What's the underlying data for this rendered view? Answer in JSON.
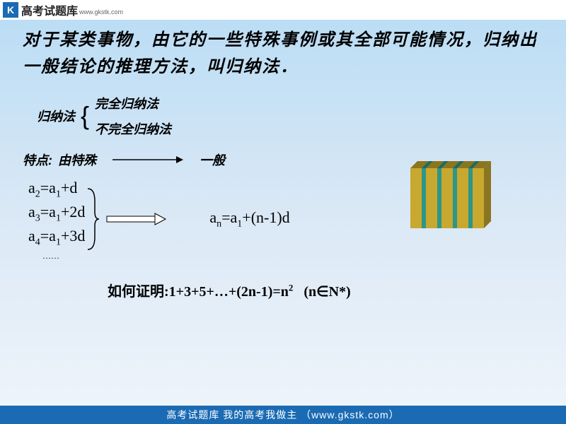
{
  "header": {
    "logo_letter": "K",
    "title": "高考试题库",
    "subtitle": "www.gkstk.com"
  },
  "main": {
    "definition": "对于某类事物，由它的一些特殊事例或其全部可能情况，归纳出一般结论的推理方法，叫归纳法．",
    "method_label": "归纳法",
    "option1": "完全归纳法",
    "option2": "不完全归纳法",
    "feature_label": "特点:",
    "feature_from": "由特殊",
    "feature_to": "一般",
    "formula1": "a₂=a₁+d",
    "formula2": "a₃=a₁+2d",
    "formula3": "a₄=a₁+3d",
    "dots": "……",
    "result": "aₙ=a₁+(n-1)d",
    "question_prefix": "如何证明:",
    "question_formula": "1+3+5+…+(2n-1)=n²",
    "question_cond": "(n∈N*)"
  },
  "footer": {
    "text": "高考试题库 我的高考我做主 （www.gkstk.com）"
  },
  "books": {
    "colors": [
      "#c8a82e",
      "#2e9688",
      "#c8a82e",
      "#2e9688",
      "#c8a82e",
      "#2e9688",
      "#c8a82e",
      "#2e9688",
      "#c8a82e"
    ],
    "shadow": "#8a7520",
    "shadow2": "#1e6a60"
  },
  "style": {
    "arrow_color": "#000000",
    "double_arrow_fill": "#ffffff",
    "double_arrow_stroke": "#000000"
  }
}
